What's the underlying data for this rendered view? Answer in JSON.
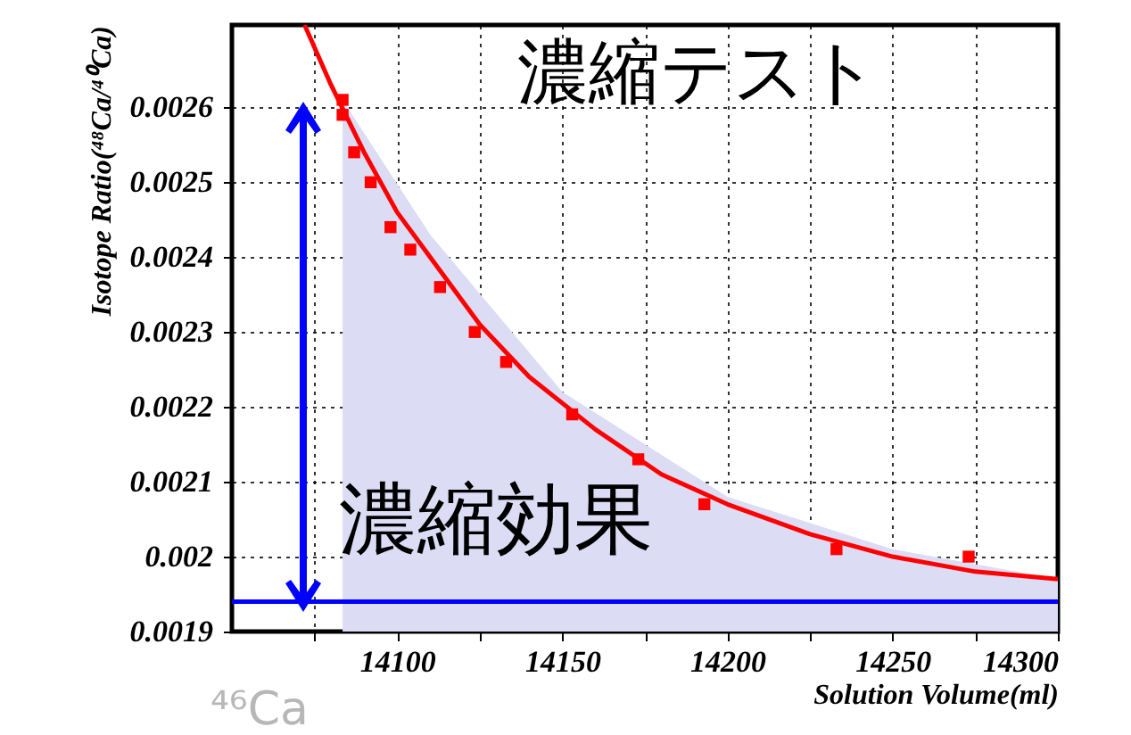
{
  "chart_data": {
    "type": "scatter",
    "xlabel": "Solution Volume(ml)",
    "ylabel": "Isotope Ratio(⁴⁸Ca/⁴⁰Ca)",
    "xlim": [
      14050,
      14300
    ],
    "ylim": [
      0.0019,
      0.00271
    ],
    "xticks": [
      {
        "value": 14075,
        "label": null
      },
      14100,
      {
        "value": 14125,
        "label": null
      },
      14150,
      {
        "value": 14175,
        "label": null
      },
      14200,
      {
        "value": 14225,
        "label": null
      },
      14250,
      {
        "value": 14275,
        "label": null
      },
      14300
    ],
    "yticks": [
      0.0019,
      0.002,
      0.0021,
      0.0022,
      0.0023,
      0.0024,
      0.0025,
      0.0026
    ],
    "grid": true,
    "annotations": [
      "濃縮テスト",
      "濃縮効果",
      "⁴⁶Ca"
    ],
    "ref_lines": [
      {
        "axis": "y",
        "value": 0.00194,
        "color": "#0000ff"
      }
    ],
    "series": [
      {
        "type": "area",
        "color": "#dcdcf5",
        "x": [
          14083.5,
          14110,
          14150,
          14200,
          14250,
          14300
        ],
        "values": [
          0.00261,
          0.00243,
          0.00222,
          0.00208,
          0.00201,
          0.00197
        ]
      },
      {
        "type": "line",
        "color": "#ff0000",
        "line_style": "solid",
        "x": [
          14072,
          14080,
          14090,
          14100,
          14110,
          14125,
          14140,
          14160,
          14180,
          14200,
          14225,
          14250,
          14275,
          14300
        ],
        "values": [
          0.00271,
          0.00263,
          0.00254,
          0.00246,
          0.0024,
          0.00231,
          0.00224,
          0.00217,
          0.00211,
          0.00207,
          0.00203,
          0.002,
          0.00198,
          0.00197
        ]
      },
      {
        "color": "#ff0000",
        "marker": "square",
        "x": [
          14083.5,
          14083.5,
          14087,
          14092,
          14098,
          14104,
          14113,
          14123.5,
          14133,
          14153,
          14173,
          14193,
          14233,
          14273
        ],
        "values": [
          0.00261,
          0.00259,
          0.00254,
          0.0025,
          0.00244,
          0.00241,
          0.00236,
          0.0023,
          0.00226,
          0.00219,
          0.00213,
          0.00207,
          0.00201,
          0.002
        ]
      }
    ]
  }
}
